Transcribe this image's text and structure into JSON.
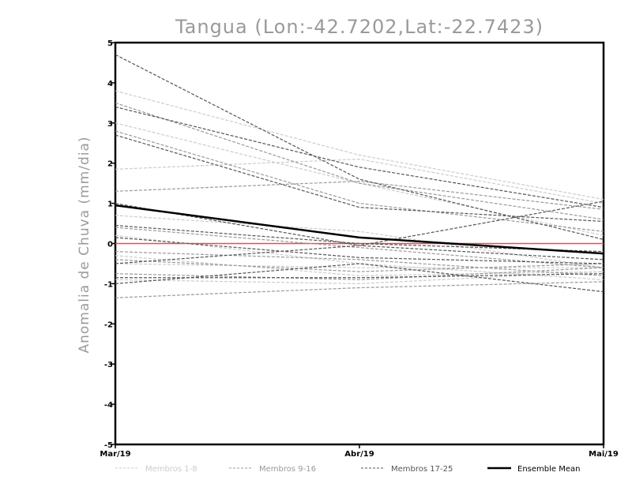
{
  "chart_data": {
    "type": "line",
    "title": "Tangua (Lon:-42.7202,Lat:-22.7423)",
    "ylabel": "Anomalia de Chuva (mm/dia)",
    "xlabel": "",
    "categories": [
      "Mar/19",
      "Abr/19",
      "Mai/19"
    ],
    "ylim": [
      -5,
      5
    ],
    "yticks": [
      -5,
      -4,
      -3,
      -2,
      -1,
      0,
      1,
      2,
      3,
      4,
      5
    ],
    "grid": false,
    "legend_position": "bottom",
    "reference_line": {
      "value": 0,
      "color": "#ff4444"
    },
    "series_groups": [
      {
        "name": "Membros 1-8",
        "color": "#cccccc",
        "style": "dashed",
        "series": [
          {
            "values": [
              3.8,
              2.2,
              1.1
            ]
          },
          {
            "values": [
              1.85,
              2.1,
              1.0
            ]
          },
          {
            "values": [
              3.0,
              1.5,
              0.2
            ]
          },
          {
            "values": [
              0.7,
              0.3,
              -0.6
            ]
          },
          {
            "values": [
              0.2,
              -0.5,
              -0.9
            ]
          },
          {
            "values": [
              -0.3,
              -0.8,
              -0.7
            ]
          },
          {
            "values": [
              -0.5,
              -0.6,
              -0.6
            ]
          },
          {
            "values": [
              -0.9,
              -1.0,
              -0.7
            ]
          }
        ]
      },
      {
        "name": "Membros 9-16",
        "color": "#999999",
        "style": "dashed",
        "series": [
          {
            "values": [
              3.5,
              1.5,
              0.6
            ]
          },
          {
            "values": [
              2.8,
              1.0,
              0.3
            ]
          },
          {
            "values": [
              1.3,
              1.55,
              0.85
            ]
          },
          {
            "values": [
              0.4,
              -0.1,
              -0.6
            ]
          },
          {
            "values": [
              -0.4,
              -0.7,
              -0.5
            ]
          },
          {
            "values": [
              -0.75,
              -0.9,
              -0.6
            ]
          },
          {
            "values": [
              -0.2,
              -0.4,
              -0.8
            ]
          },
          {
            "values": [
              -1.35,
              -1.1,
              -0.95
            ]
          }
        ]
      },
      {
        "name": "Membros 17-25",
        "color": "#555555",
        "style": "dashed",
        "series": [
          {
            "values": [
              4.7,
              1.6,
              0.1
            ]
          },
          {
            "values": [
              3.4,
              1.9,
              0.9
            ]
          },
          {
            "values": [
              2.7,
              0.9,
              0.55
            ]
          },
          {
            "values": [
              1.0,
              -0.05,
              -0.4
            ]
          },
          {
            "values": [
              0.45,
              0.0,
              -0.2
            ]
          },
          {
            "values": [
              0.15,
              -0.35,
              -0.5
            ]
          },
          {
            "values": [
              -0.5,
              -0.05,
              1.05
            ]
          },
          {
            "values": [
              -0.85,
              -0.85,
              -0.75
            ]
          },
          {
            "values": [
              -1.0,
              -0.5,
              -1.2
            ]
          }
        ]
      }
    ],
    "ensemble_mean": {
      "name": "Ensemble Mean",
      "color": "#000000",
      "values": [
        0.95,
        0.15,
        -0.25
      ]
    }
  }
}
